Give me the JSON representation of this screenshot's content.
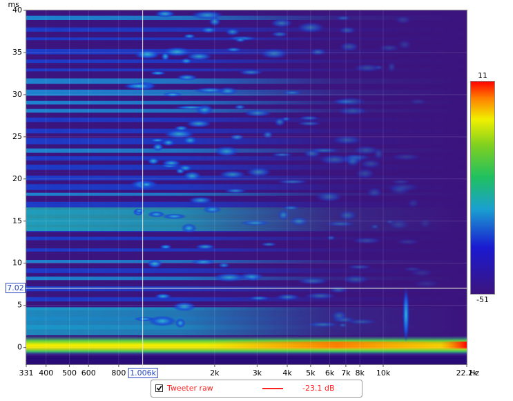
{
  "chart_data": {
    "type": "spectrogram",
    "x_unit": "Hz",
    "y_label": "ms",
    "xlog": true,
    "grid": true,
    "xlim": [
      331,
      22200
    ],
    "xticks": [
      331,
      400,
      500,
      600,
      800,
      {
        "value": 2000,
        "label": "2k"
      },
      {
        "value": 3000,
        "label": "3k"
      },
      {
        "value": 4000,
        "label": "4k"
      },
      {
        "value": 5000,
        "label": "5k"
      },
      {
        "value": 6000,
        "label": "6k"
      },
      {
        "value": 7000,
        "label": "7k"
      },
      {
        "value": 8000,
        "label": "8k"
      },
      {
        "value": 10000,
        "label": "10k"
      },
      {
        "value": 22200,
        "label": "22.2k"
      }
    ],
    "ylim": [
      -2,
      40
    ],
    "yticks": [
      0,
      5,
      10,
      15,
      20,
      25,
      30,
      35,
      40
    ],
    "colorbar": {
      "zlim": [
        -51,
        11
      ]
    },
    "cursor": {
      "x": 1006,
      "x_label": "1.006k",
      "y": 7.02
    },
    "legend": {
      "name": "Tweeter raw",
      "reading": "-23.1 dB",
      "color": "#ff2020"
    }
  }
}
